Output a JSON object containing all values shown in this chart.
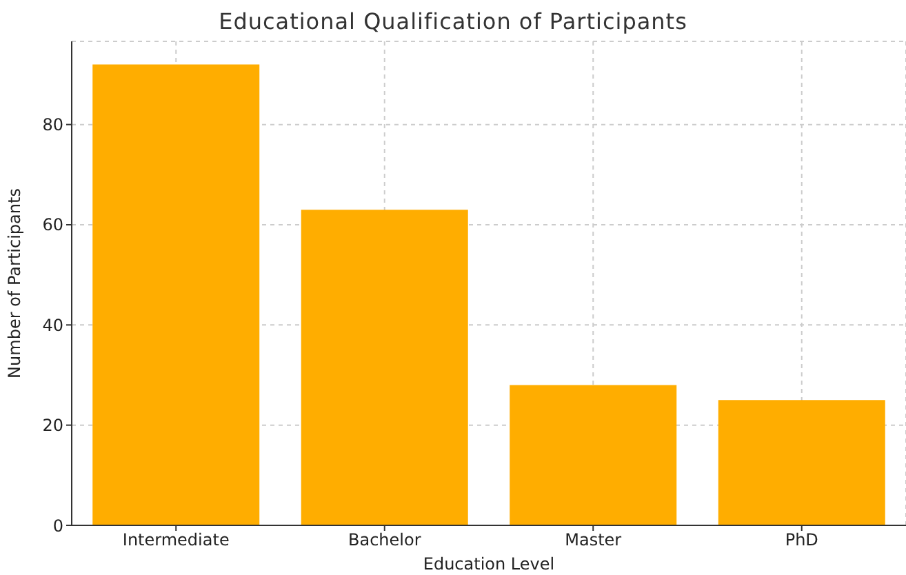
{
  "chart_data": {
    "type": "bar",
    "title": "Educational Qualification of Participants",
    "xlabel": "Education Level",
    "ylabel": "Number of Participants",
    "categories": [
      "Intermediate",
      "Bachelor",
      "Master",
      "PhD"
    ],
    "values": [
      92,
      63,
      28,
      25
    ],
    "color": "#ffad00",
    "ylim": [
      0,
      96.6
    ],
    "yticks": [
      0,
      20,
      40,
      60,
      80
    ],
    "grid": true
  }
}
